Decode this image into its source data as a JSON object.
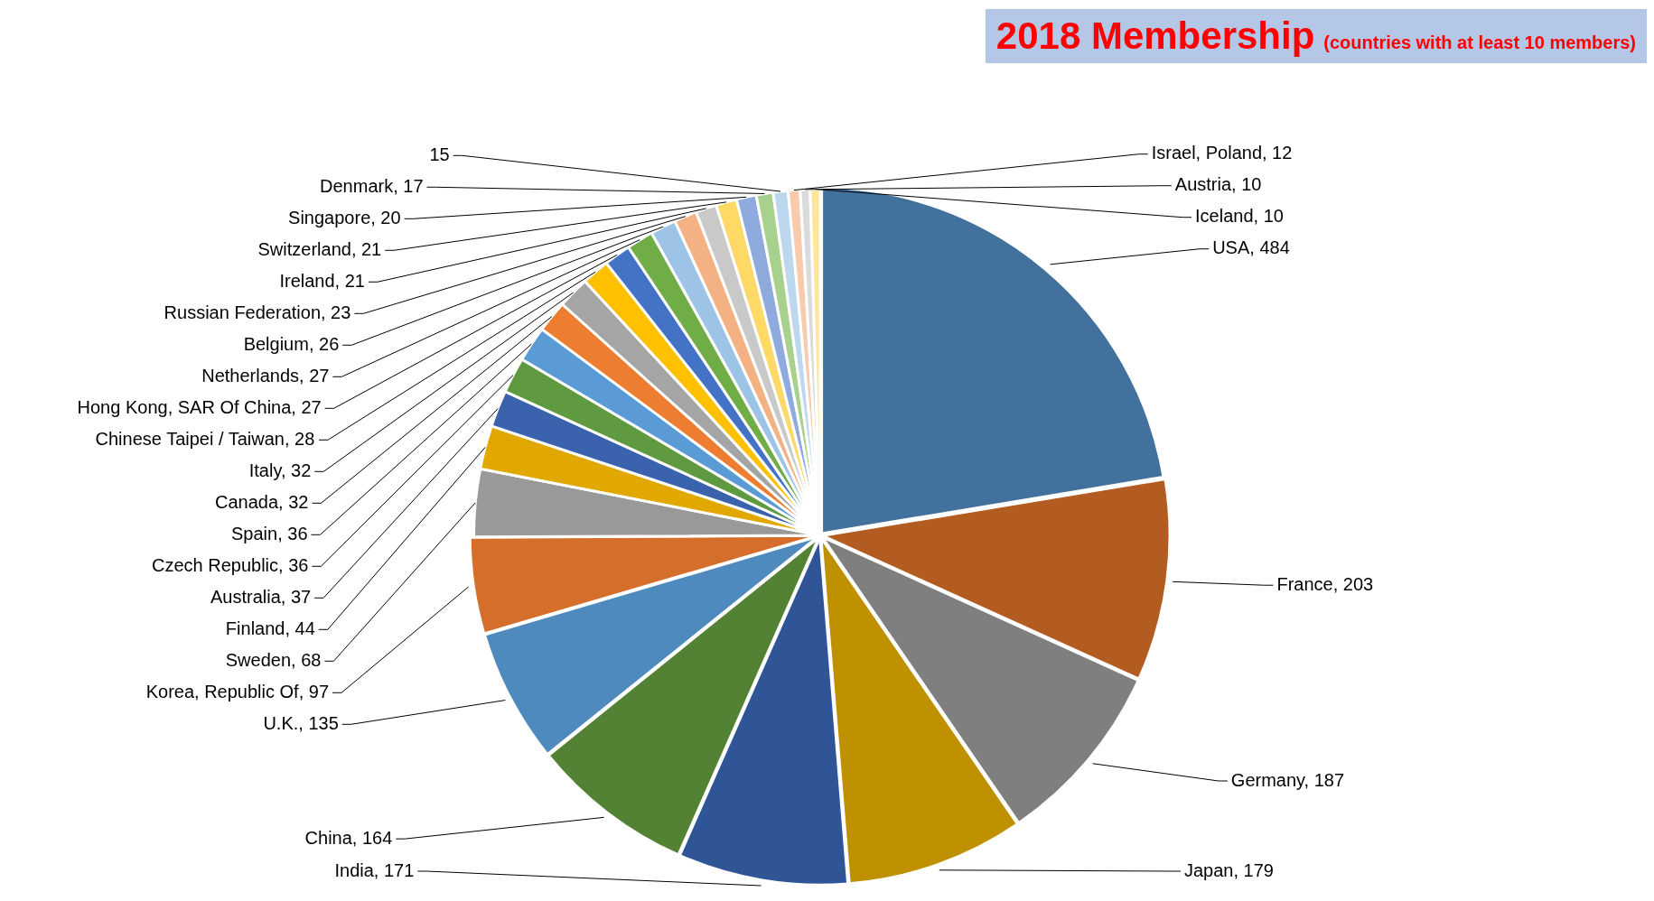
{
  "chart_data": {
    "type": "pie",
    "title": "2018 Membership",
    "subtitle": "(countries with at least 10 members)",
    "categories": [
      "USA",
      "France",
      "Germany",
      "Japan",
      "India",
      "China",
      "U.K.",
      "Korea, Republic Of",
      "Sweden",
      "Finland",
      "Australia",
      "Czech Republic",
      "Spain",
      "Canada",
      "Italy",
      "Chinese Taipei / Taiwan",
      "Hong Kong, SAR Of China",
      "Netherlands",
      "Belgium",
      "Russian Federation",
      "Ireland",
      "Switzerland",
      "Singapore",
      "Denmark",
      null,
      "Israel, Poland",
      "Austria",
      "Iceland"
    ],
    "values": [
      484,
      203,
      187,
      179,
      171,
      164,
      135,
      97,
      68,
      44,
      37,
      36,
      36,
      32,
      32,
      28,
      27,
      27,
      26,
      23,
      21,
      21,
      20,
      17,
      15,
      12,
      10,
      10
    ],
    "colors": [
      "#41719c",
      "#b35c22",
      "#7f7f7f",
      "#bf9000",
      "#2f5597",
      "#548235",
      "#4e8abe",
      "#d46e2a",
      "#999999",
      "#e0a800",
      "#3a62ad",
      "#5f9a40",
      "#5b9bd5",
      "#ed7d31",
      "#a5a5a5",
      "#ffc000",
      "#4472c4",
      "#70ad47",
      "#9dc3e6",
      "#f4b183",
      "#c9c9c9",
      "#ffd966",
      "#8faadc",
      "#a9d18e",
      "#bdd7ee",
      "#f8cbad",
      "#dbdbdb",
      "#ffe699"
    ],
    "value_labels": [
      ", 484",
      ", 203",
      ", 187",
      ", 179",
      ", 171",
      ", 164",
      ", 135",
      ", 97",
      ", 68",
      ", 44",
      ", 37",
      ", 36",
      ", 36",
      ", 32",
      ", 32",
      ", 28",
      ", 27",
      ", 27",
      ", 26",
      ", 23",
      ", 21",
      ", 21",
      ", 20",
      ", 17",
      "15",
      ", 12",
      ", 10",
      ", 10"
    ],
    "legend": false
  }
}
